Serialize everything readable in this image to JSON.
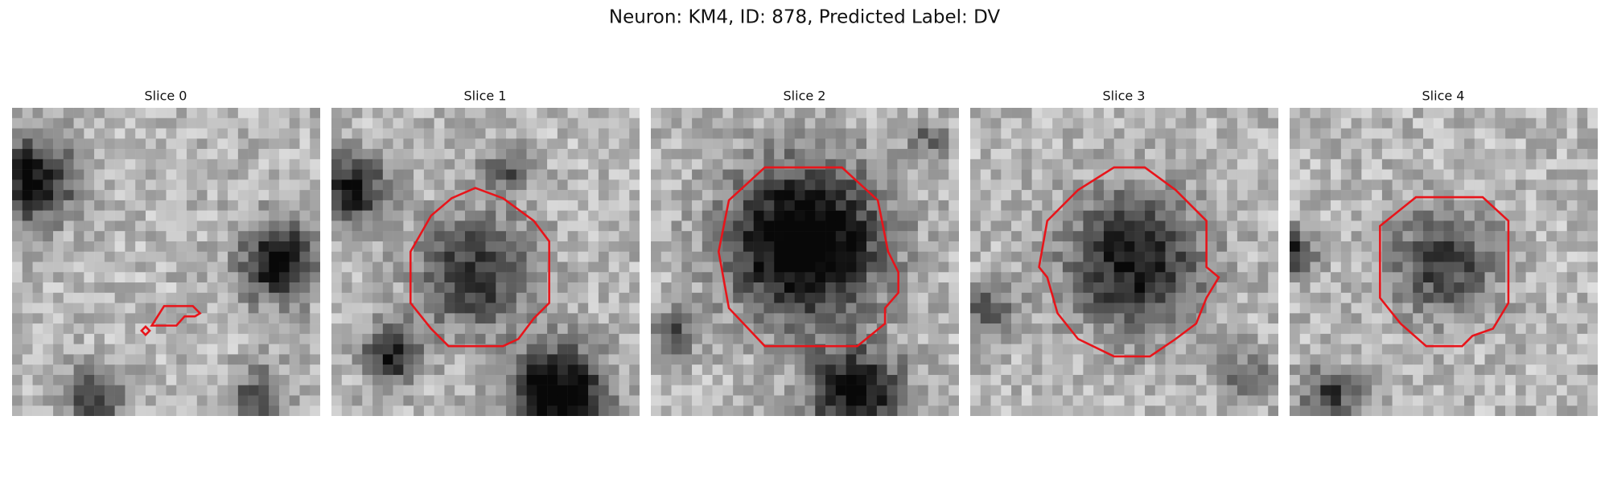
{
  "title": "Neuron: KM4, ID: 878, Predicted Label: DV",
  "panels": [
    {
      "title": "Slice 0"
    },
    {
      "title": "Slice 1"
    },
    {
      "title": "Slice 2"
    },
    {
      "title": "Slice 3"
    },
    {
      "title": "Slice 4"
    }
  ]
}
